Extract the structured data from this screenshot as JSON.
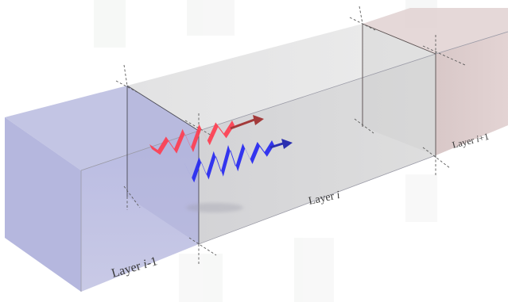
{
  "labels": {
    "left": {
      "prefix": "Layer ",
      "var": "i",
      "suffix": "-1"
    },
    "middle": {
      "prefix": "Layer ",
      "var": "i",
      "suffix": ""
    },
    "right": {
      "prefix": "Layer ",
      "var": "i",
      "suffix": "+1"
    }
  },
  "colors": {
    "left_layer": "#b3b5dd",
    "middle_layer": "#d9d9da",
    "right_layer": "#d8c4c4",
    "red_wave": "#ff3b4e",
    "blue_wave": "#2a2cf0",
    "red_arrow": "#a33a3a",
    "blue_arrow": "#2a2fb0"
  }
}
